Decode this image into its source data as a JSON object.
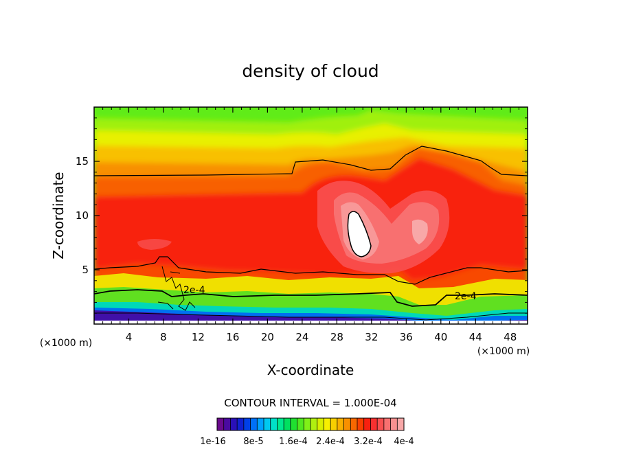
{
  "chart_data": {
    "type": "heatmap",
    "title": "density of cloud",
    "xlabel": "X-coordinate",
    "ylabel": "Z-coordinate",
    "x_unit": "(×1000 m)",
    "y_unit": "(×1000 m)",
    "xlim": [
      0,
      50
    ],
    "ylim": [
      0,
      20
    ],
    "x_ticks": [
      4,
      8,
      12,
      16,
      20,
      24,
      28,
      32,
      36,
      40,
      44,
      48
    ],
    "y_ticks": [
      5,
      10,
      15
    ],
    "contour_interval_text": "CONTOUR INTERVAL = 1.000E-04",
    "contour_label": "2e-4",
    "colorbar": {
      "colors": [
        "#6a0a8c",
        "#4a0aa0",
        "#2a10b8",
        "#1020d0",
        "#0040e8",
        "#0070f8",
        "#00a0ff",
        "#00c8f0",
        "#00e0c8",
        "#00e890",
        "#00e060",
        "#20e030",
        "#50e820",
        "#80f018",
        "#b0f010",
        "#d8f000",
        "#f8f000",
        "#f8d000",
        "#f8b000",
        "#f89000",
        "#f86800",
        "#f84000",
        "#f82010",
        "#f83030",
        "#f85050",
        "#f87070",
        "#f89090",
        "#f8a8a8"
      ],
      "tick_labels": [
        "1e-16",
        "8e-5",
        "1.6e-4",
        "2.4e-4",
        "3.2e-4",
        "4e-4"
      ]
    }
  }
}
